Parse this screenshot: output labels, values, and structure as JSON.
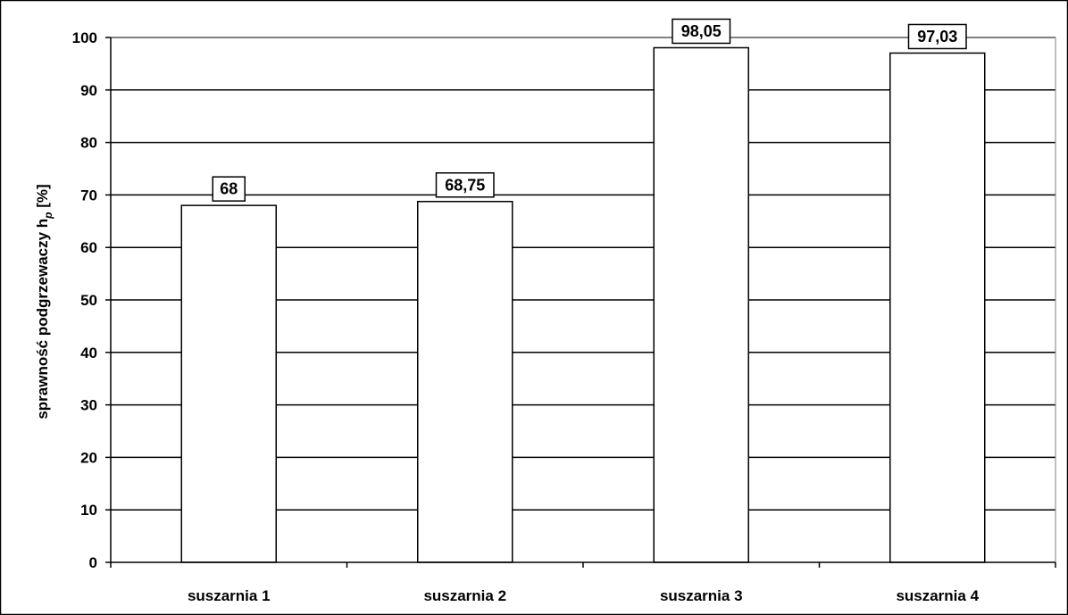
{
  "chart_data": {
    "type": "bar",
    "categories": [
      "suszarnia 1",
      "suszarnia 2",
      "suszarnia 3",
      "suszarnia 4"
    ],
    "values": [
      68,
      68.75,
      98.05,
      97.03
    ],
    "data_labels": [
      "68",
      "68,75",
      "98,05",
      "97,03"
    ],
    "ylabel_main": "sprawność podgrzewaczy h",
    "ylabel_sub": "p",
    "ylabel_unit": " [%]",
    "ylim": [
      0,
      100
    ],
    "yticks": [
      0,
      10,
      20,
      30,
      40,
      50,
      60,
      70,
      80,
      90,
      100
    ],
    "grid": true,
    "legend": "none",
    "colors": {
      "bar_fill": "#ffffff",
      "bar_stroke": "#000000",
      "grid": "#000000",
      "plot_border": "#808080"
    }
  }
}
